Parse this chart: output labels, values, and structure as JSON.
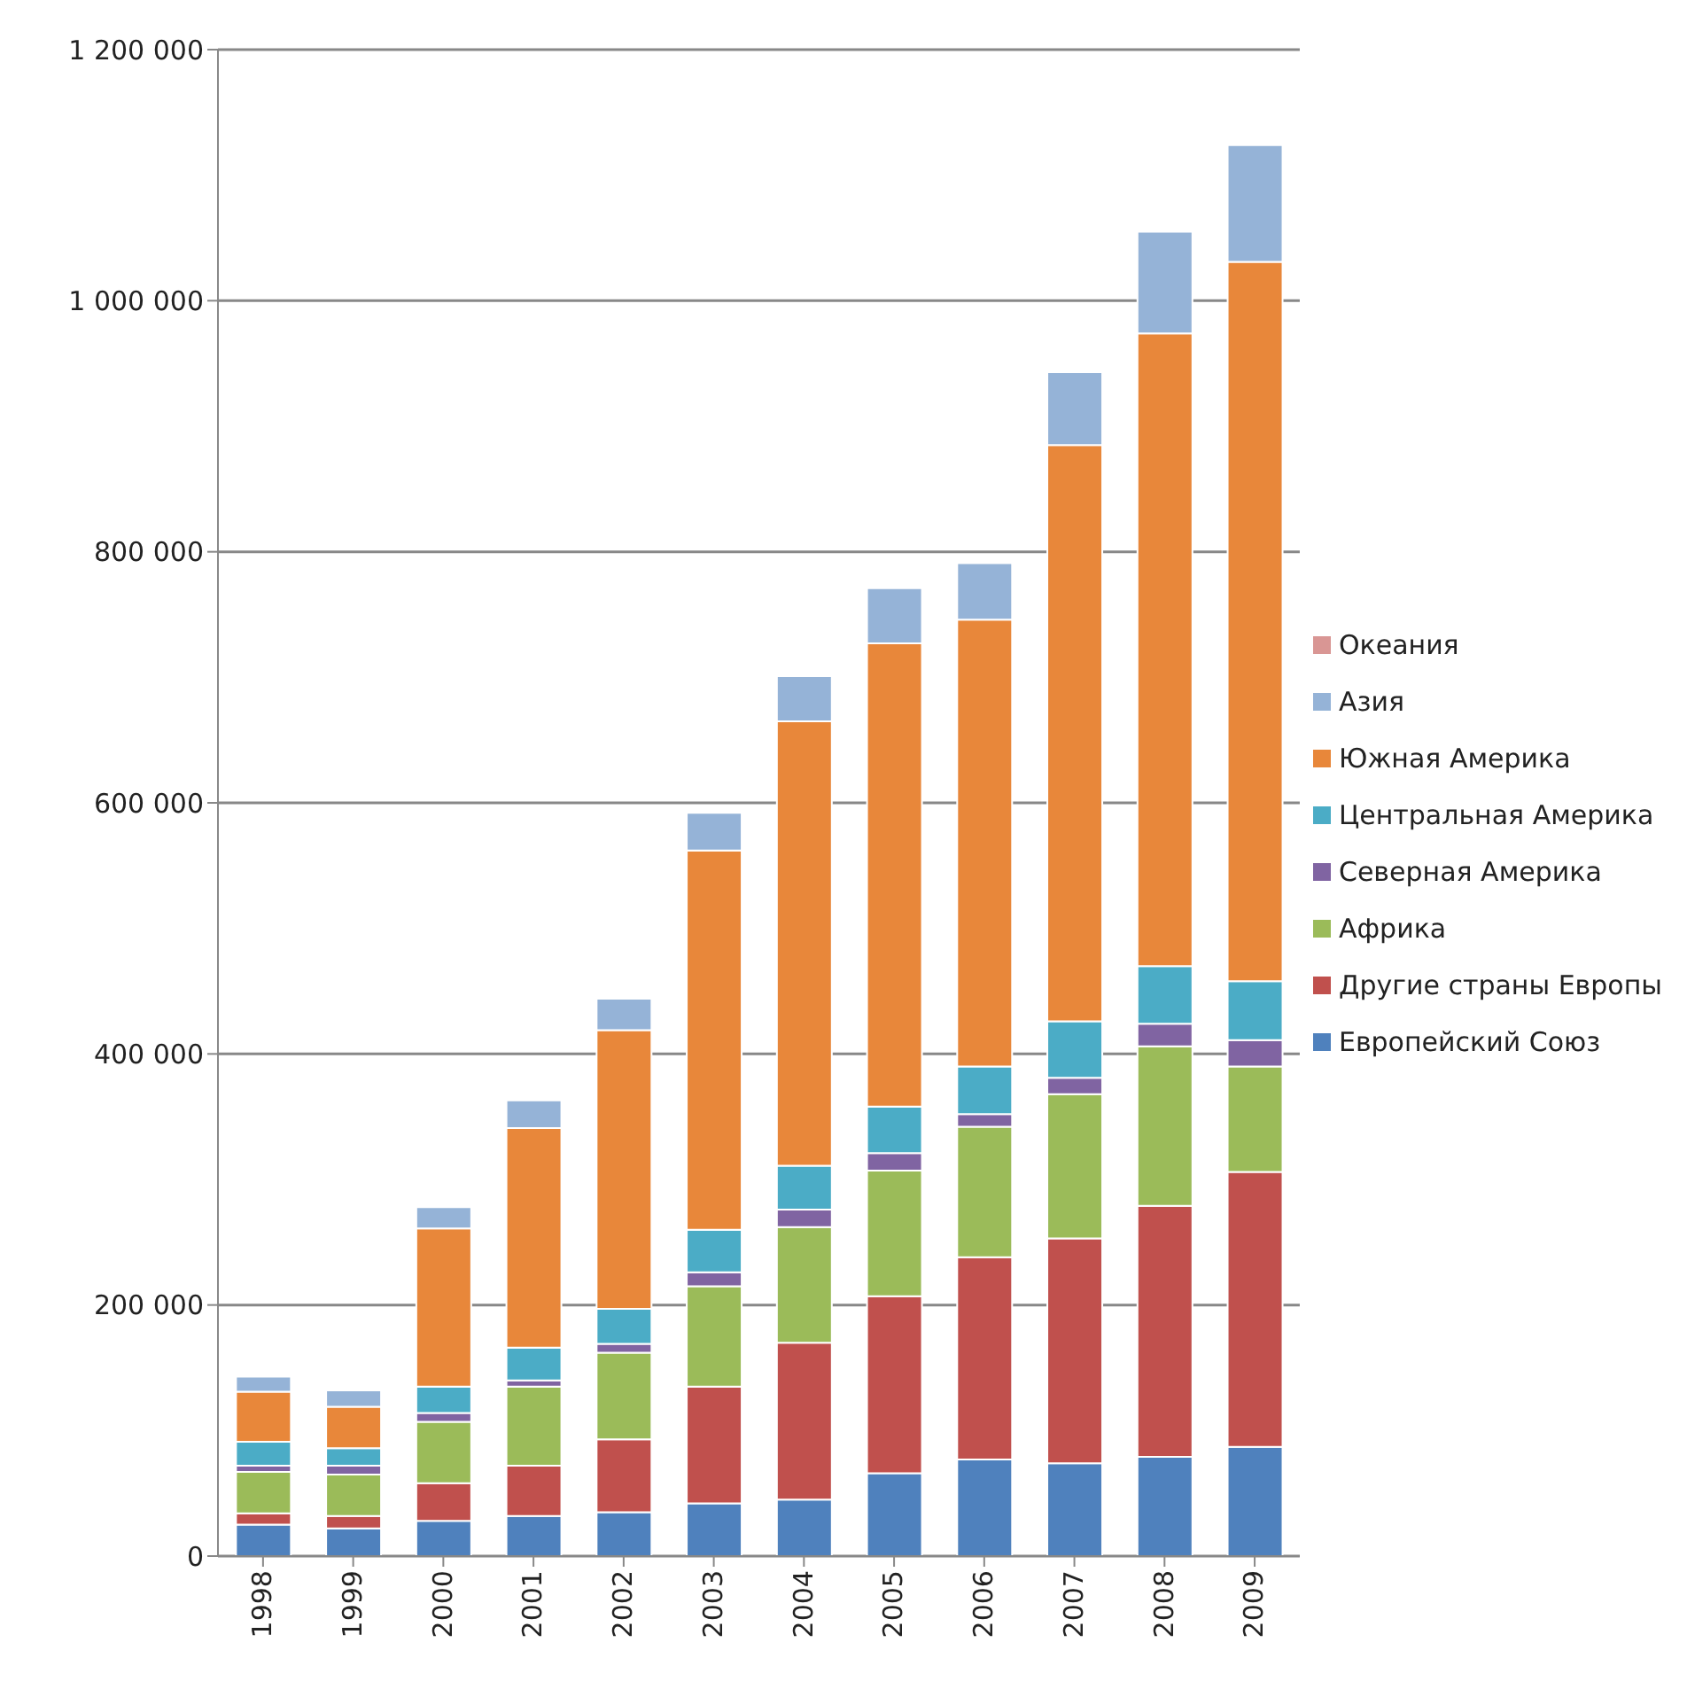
{
  "chart_data": {
    "type": "bar",
    "stacked": true,
    "categories": [
      "1998",
      "1999",
      "2000",
      "2001",
      "2002",
      "2003",
      "2004",
      "2005",
      "2006",
      "2007",
      "2008",
      "2009"
    ],
    "series": [
      {
        "name": "Европейский Союз",
        "color": "#4f81bd",
        "values": [
          25000,
          22000,
          28000,
          32000,
          35000,
          42000,
          45000,
          66000,
          77000,
          74000,
          79000,
          87000
        ]
      },
      {
        "name": "Другие страны Европы",
        "color": "#c0504d",
        "values": [
          9000,
          10000,
          30000,
          40000,
          58000,
          93000,
          125000,
          141000,
          161000,
          179000,
          200000,
          219000
        ]
      },
      {
        "name": "Африка",
        "color": "#9bbb59",
        "values": [
          33000,
          33000,
          49000,
          63000,
          69000,
          80000,
          92000,
          100000,
          104000,
          115000,
          127000,
          84000
        ]
      },
      {
        "name": "Северная Америка",
        "color": "#8064a2",
        "values": [
          5000,
          7000,
          7000,
          5000,
          7000,
          11000,
          14000,
          14000,
          10000,
          13000,
          18000,
          21000
        ]
      },
      {
        "name": "Центральная Америка",
        "color": "#4bacc6",
        "values": [
          19000,
          14000,
          21000,
          26000,
          28000,
          34000,
          35000,
          37000,
          38000,
          45000,
          46000,
          47000
        ]
      },
      {
        "name": "Южная Америка",
        "color": "#e8873a",
        "values": [
          40000,
          33000,
          126000,
          175000,
          222000,
          302000,
          354000,
          369000,
          356000,
          459000,
          504000,
          573000
        ]
      },
      {
        "name": "Азия",
        "color": "#95b3d7",
        "values": [
          12000,
          13000,
          17000,
          22000,
          25000,
          30000,
          36000,
          44000,
          45000,
          58000,
          81000,
          93000
        ]
      },
      {
        "name": "Океания",
        "color": "#d99694",
        "values": [
          0,
          0,
          0,
          0,
          0,
          0,
          0,
          0,
          0,
          0,
          0,
          0
        ]
      }
    ],
    "ylim": [
      0,
      1200000
    ],
    "yticks": [
      0,
      {
        "value": 200000,
        "label": "200 000"
      },
      {
        "value": 400000,
        "label": "400 000"
      },
      {
        "value": 600000,
        "label": "600 000"
      },
      {
        "value": 800000,
        "label": "800 000"
      },
      {
        "value": 1000000,
        "label": "1 000 000"
      },
      {
        "value": 1200000,
        "label": "1 200 000"
      }
    ],
    "grid": "y",
    "legend": "right"
  }
}
